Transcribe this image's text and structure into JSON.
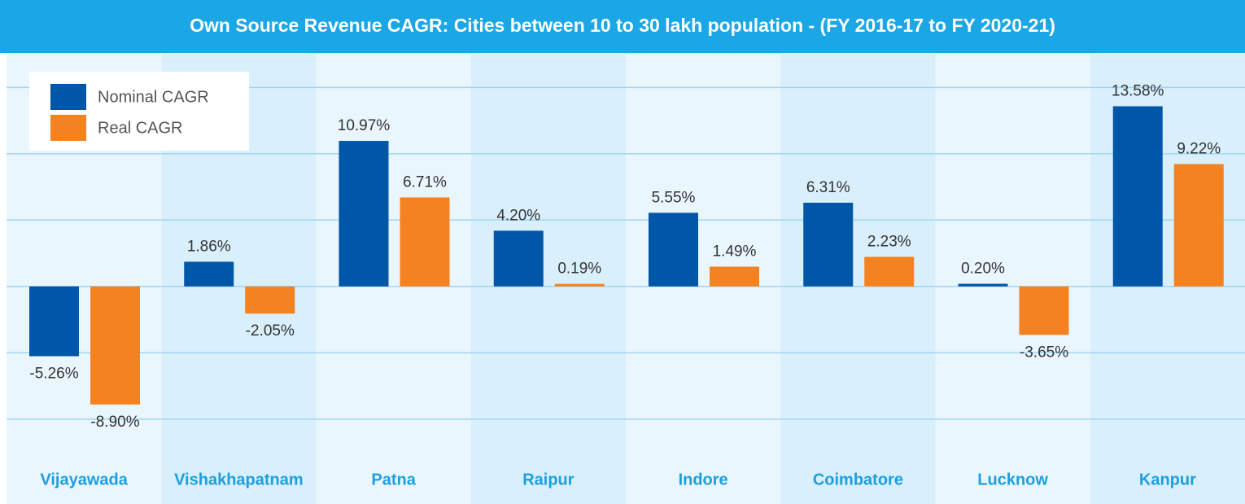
{
  "chart_data": {
    "type": "bar",
    "title": "Own Source Revenue CAGR: Cities between 10 to 30 lakh population - (FY 2016-17 to FY 2020-21)",
    "categories": [
      "Vijayawada",
      "Vishakhapatnam",
      "Patna",
      "Raipur",
      "Indore",
      "Coimbatore",
      "Lucknow",
      "Kanpur"
    ],
    "series": [
      {
        "name": "Nominal CAGR",
        "color": "#0057a8",
        "values": [
          -5.26,
          1.86,
          10.97,
          4.2,
          5.55,
          6.31,
          0.2,
          13.58
        ],
        "value_labels": [
          "-5.26%",
          "1.86%",
          "10.97%",
          "4.20%",
          "5.55%",
          "6.31%",
          "0.20%",
          "13.58%"
        ]
      },
      {
        "name": "Real CAGR",
        "color": "#f58220",
        "values": [
          -8.9,
          -2.05,
          6.71,
          0.19,
          1.49,
          2.23,
          -3.65,
          9.22
        ],
        "value_labels": [
          "-8.90%",
          "-2.05%",
          "6.71%",
          "0.19%",
          "1.49%",
          "2.23%",
          "-3.65%",
          "9.22%"
        ]
      }
    ],
    "ylim": [
      -16.4,
      17.6
    ],
    "yticks": [
      -10,
      -5,
      0,
      5,
      10,
      15
    ],
    "grid": true,
    "legend": "top-left"
  }
}
